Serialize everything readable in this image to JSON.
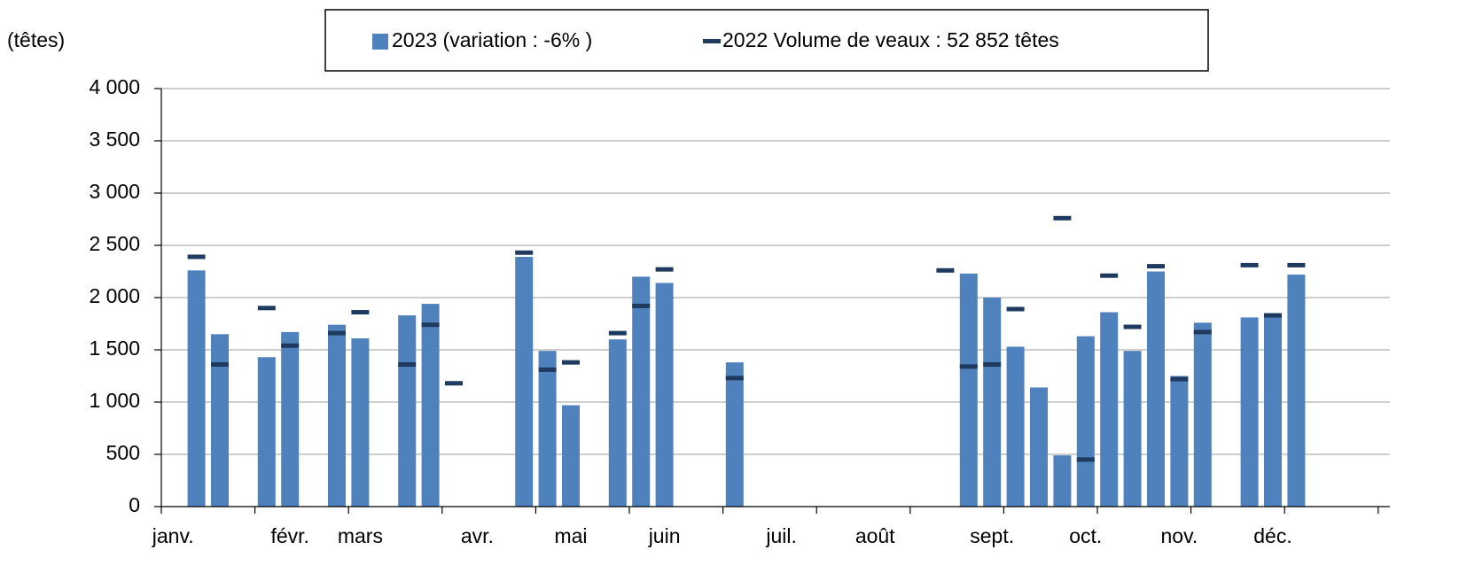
{
  "chart_data": {
    "type": "bar",
    "y_label": "(têtes)",
    "categories": [
      "janv.",
      null,
      null,
      null,
      null,
      "févr.",
      null,
      null,
      "mars",
      null,
      null,
      null,
      null,
      "avr.",
      null,
      null,
      null,
      "mai",
      null,
      null,
      null,
      "juin",
      null,
      null,
      null,
      null,
      "juil.",
      null,
      null,
      null,
      "août",
      null,
      null,
      null,
      null,
      "sept.",
      null,
      null,
      null,
      "oct.",
      null,
      null,
      null,
      "nov.",
      null,
      null,
      null,
      "déc.",
      null,
      null,
      null,
      null,
      null
    ],
    "series": [
      {
        "name": "2023 (variation : -6% )",
        "color": "#4f81bd",
        "style": "bar",
        "values": [
          null,
          2260,
          1650,
          null,
          1430,
          1670,
          null,
          1740,
          1610,
          null,
          1830,
          1940,
          null,
          null,
          null,
          2390,
          1490,
          970,
          null,
          1600,
          2200,
          2140,
          null,
          null,
          1380,
          null,
          null,
          null,
          null,
          null,
          null,
          null,
          null,
          null,
          2230,
          2000,
          1530,
          1140,
          490,
          1630,
          1860,
          1490,
          2250,
          1250,
          1760,
          null,
          1810,
          1840,
          2220,
          null,
          null,
          null,
          null
        ]
      },
      {
        "name": "2022 Volume de veaux : 52 852 têtes",
        "color": "#1f3a5f",
        "style": "dash",
        "values": [
          null,
          2390,
          1360,
          null,
          1900,
          1540,
          null,
          1660,
          1860,
          null,
          1360,
          1740,
          1180,
          null,
          null,
          2430,
          1310,
          1380,
          null,
          1660,
          1920,
          2270,
          null,
          null,
          1230,
          null,
          null,
          null,
          null,
          null,
          null,
          null,
          null,
          2260,
          1340,
          1360,
          1890,
          null,
          2760,
          450,
          2210,
          1720,
          2300,
          1220,
          1670,
          null,
          2310,
          1830,
          2310,
          null,
          null,
          null,
          null
        ]
      }
    ],
    "ylim": [
      0,
      4000
    ],
    "yticks": [
      0,
      500,
      {
        "value": 1000,
        "label": "1 000"
      },
      {
        "value": 1500,
        "label": "1 500"
      },
      {
        "value": 2000,
        "label": "2 000"
      },
      {
        "value": 2500,
        "label": "2 500"
      },
      {
        "value": 3000,
        "label": "3 000"
      },
      {
        "value": 3500,
        "label": "3 500"
      },
      {
        "value": 4000,
        "label": "4 000"
      }
    ],
    "grid": true,
    "legend": "top"
  }
}
